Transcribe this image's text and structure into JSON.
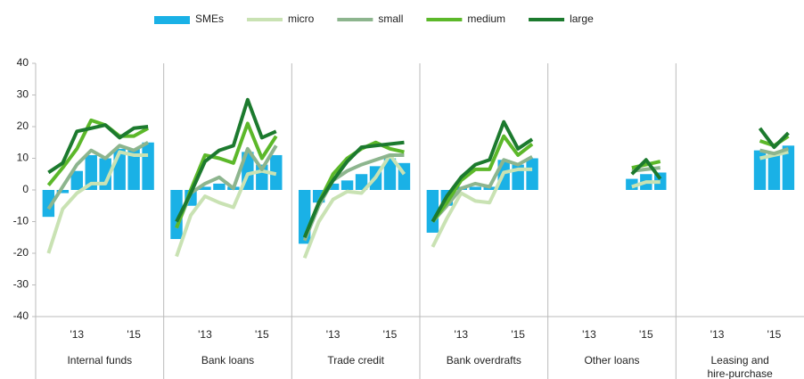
{
  "chart_data": {
    "type": "bar-line",
    "groups": [
      "Internal funds",
      "Bank loans",
      "Trade credit",
      "Bank overdrafts",
      "Other loans",
      "Leasing and hire-purchase"
    ],
    "categories": [
      null,
      null,
      "'13",
      null,
      null,
      null,
      "'15",
      null,
      null,
      null,
      "'13",
      null,
      null,
      null,
      "'15",
      null,
      null,
      null,
      "'13",
      null,
      null,
      null,
      "'15",
      null,
      null,
      null,
      "'13",
      null,
      null,
      null,
      "'15",
      null,
      null,
      null,
      "'13",
      null,
      null,
      null,
      "'15",
      null,
      null,
      null,
      "'13",
      null,
      null,
      null,
      "'15",
      null
    ],
    "ylim": [
      -40,
      40
    ],
    "yticks": [
      -40,
      -30,
      -20,
      -10,
      0,
      10,
      20,
      30,
      40
    ],
    "series": [
      {
        "name": "SMEs",
        "kind": "bar",
        "color": "#1ab1e6",
        "values": [
          -8.5,
          -1,
          6,
          11,
          10,
          13,
          13,
          15,
          -15.5,
          -5,
          1,
          2,
          1,
          12,
          8,
          11,
          -17,
          -4,
          2,
          3,
          5,
          7.5,
          10,
          8.5,
          -13.5,
          -5,
          1,
          1,
          1,
          9.5,
          8,
          10,
          null,
          null,
          null,
          null,
          null,
          3.5,
          5,
          5.5,
          null,
          null,
          null,
          null,
          null,
          12.5,
          11.5,
          14
        ]
      },
      {
        "name": "micro",
        "kind": "line",
        "color": "#c9e2b3",
        "values": [
          -20,
          -6,
          -1,
          2,
          2,
          12,
          11,
          11,
          -21,
          -8,
          -2,
          -4,
          -5.5,
          5,
          6,
          5,
          -21.5,
          -10,
          -3,
          -0.5,
          -1,
          4,
          11,
          5,
          -18,
          -9,
          -1,
          -3.5,
          -4,
          5.5,
          6.5,
          6.5,
          null,
          null,
          null,
          null,
          null,
          1,
          2.5,
          2.5,
          null,
          null,
          null,
          null,
          null,
          10,
          11,
          12
        ]
      },
      {
        "name": "small",
        "kind": "line",
        "color": "#8db58e",
        "values": [
          -6,
          1,
          8,
          12.5,
          10,
          14,
          12.5,
          15,
          -12,
          -1,
          2,
          4,
          0.5,
          13,
          6.5,
          14,
          -16,
          -5,
          3,
          6,
          8,
          9.5,
          11,
          11,
          -10,
          -5,
          0.5,
          2,
          1,
          9.5,
          8,
          10.5,
          null,
          null,
          null,
          null,
          null,
          6,
          6.5,
          7,
          null,
          null,
          null,
          null,
          null,
          12.5,
          11.5,
          13
        ]
      },
      {
        "name": "medium",
        "kind": "line",
        "color": "#5cb82a",
        "values": [
          1.5,
          7,
          13,
          22,
          20.5,
          17,
          17,
          19.5,
          -12,
          0,
          11,
          10,
          8.5,
          21,
          10,
          17,
          -15,
          -4,
          5,
          10,
          13,
          15,
          13,
          12,
          -10,
          -4,
          3,
          6.5,
          6.5,
          17,
          11,
          14.5,
          null,
          null,
          null,
          null,
          null,
          7,
          8,
          9,
          null,
          null,
          null,
          null,
          null,
          15.5,
          14,
          17
        ]
      },
      {
        "name": "large",
        "kind": "line",
        "color": "#1c7a2e",
        "values": [
          5.5,
          8.5,
          18.5,
          19.5,
          20.5,
          16.5,
          19.5,
          20,
          -10,
          -1,
          9,
          12.5,
          14,
          28.5,
          16.5,
          18.5,
          -15,
          -4,
          3,
          9,
          13.5,
          14,
          14.5,
          15,
          -10,
          -2,
          4,
          8,
          9.5,
          21.5,
          13,
          16,
          null,
          null,
          null,
          null,
          null,
          5,
          9.5,
          3.5,
          null,
          null,
          null,
          null,
          null,
          19.5,
          13.5,
          18
        ]
      }
    ]
  }
}
